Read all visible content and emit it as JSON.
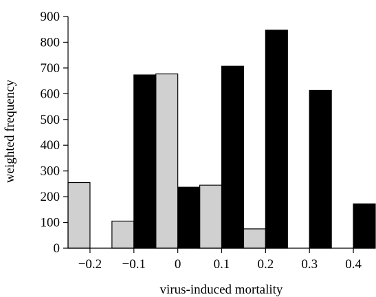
{
  "chart_data": {
    "type": "bar",
    "title": "",
    "xlabel": "virus-induced mortality",
    "ylabel": "weighted frequency",
    "ylim": [
      0,
      900
    ],
    "yticks": [
      0,
      100,
      200,
      300,
      400,
      500,
      600,
      700,
      800,
      900
    ],
    "ytick_labels": [
      "0",
      "100",
      "200",
      "300",
      "400",
      "500",
      "600",
      "700",
      "800",
      "900"
    ],
    "xticks": [
      -0.2,
      -0.1,
      0,
      0.1,
      0.2,
      0.3,
      0.4
    ],
    "xtick_labels": [
      "−0.2",
      "−0.1",
      "0",
      "0.1",
      "0.2",
      "0.3",
      "0.4"
    ],
    "xlim": [
      -0.25,
      0.45
    ],
    "bin_width": 0.05,
    "grid": false,
    "series": [
      {
        "color": "#d0d0d0",
        "bins": [
          {
            "x0": -0.25,
            "x1": -0.2,
            "value": 255
          },
          {
            "x0": -0.15,
            "x1": -0.1,
            "value": 105
          },
          {
            "x0": -0.05,
            "x1": 0.0,
            "value": 677
          },
          {
            "x0": 0.05,
            "x1": 0.1,
            "value": 245
          },
          {
            "x0": 0.15,
            "x1": 0.2,
            "value": 75
          }
        ]
      },
      {
        "color": "#000000",
        "bins": [
          {
            "x0": -0.1,
            "x1": -0.05,
            "value": 673
          },
          {
            "x0": 0.0,
            "x1": 0.05,
            "value": 237
          },
          {
            "x0": 0.1,
            "x1": 0.15,
            "value": 707
          },
          {
            "x0": 0.2,
            "x1": 0.25,
            "value": 847
          },
          {
            "x0": 0.3,
            "x1": 0.35,
            "value": 613
          },
          {
            "x0": 0.4,
            "x1": 0.45,
            "value": 172
          }
        ]
      }
    ]
  }
}
